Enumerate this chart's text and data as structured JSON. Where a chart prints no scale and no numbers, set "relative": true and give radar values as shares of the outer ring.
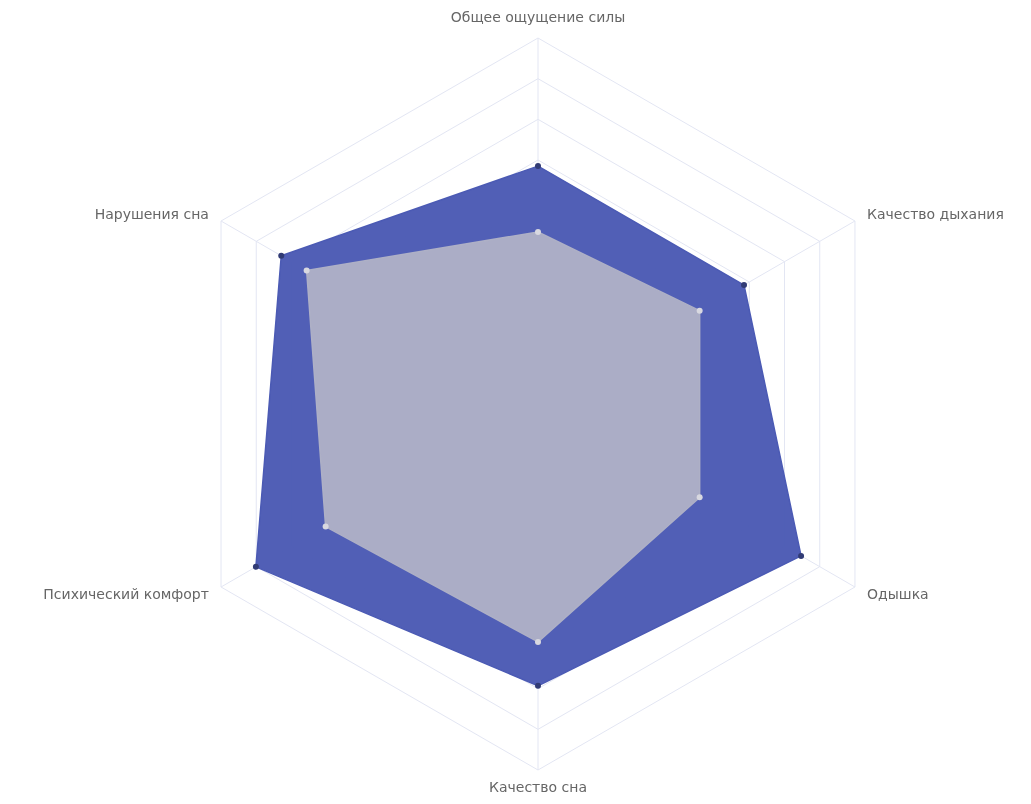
{
  "chart_data": {
    "type": "radar",
    "relative": true,
    "grid": true,
    "marker": "circle",
    "categories": [
      "Общее ощущение силы",
      "Качество дыхания",
      "Одышка",
      "Качество сна",
      "Психический комфорт",
      "Нарушения сна"
    ],
    "series": [
      {
        "color": "#4b5ab4",
        "values": [
          0.65,
          0.65,
          0.83,
          0.77,
          0.89,
          0.81
        ]
      },
      {
        "color": "#aeb0c6",
        "values": [
          0.47,
          0.51,
          0.51,
          0.65,
          0.67,
          0.73
        ]
      }
    ]
  }
}
